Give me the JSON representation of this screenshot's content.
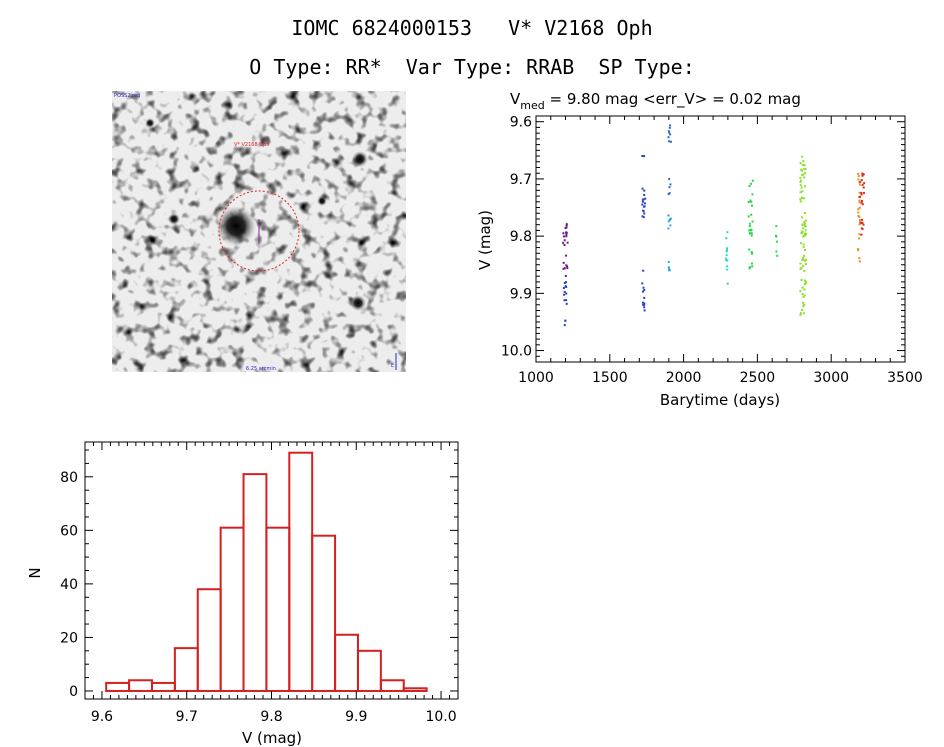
{
  "header": {
    "title_line1": "IOMC 6824000153   V* V2168 Oph",
    "title_line2": "O Type: RR*  Var Type: RRAB  SP Type:"
  },
  "stamp": {
    "top_label": "POSS2 red",
    "center_label": "V* V2168 Oph",
    "bottom_center_label": "6.25 arcmin",
    "bottom_right_label": "E"
  },
  "colors": {
    "histogram": "#d42020",
    "aperture": "#e02020",
    "series": [
      "#6a1a8a",
      "#2a3fc8",
      "#2a68d8",
      "#2aa8d8",
      "#28d8c0",
      "#28d84a",
      "#88e028",
      "#c8e020",
      "#e89018",
      "#d83018"
    ]
  },
  "chart_data": [
    {
      "type": "scatter",
      "title_prefix": "V",
      "title_subscript": "med",
      "title_rest": " = 9.80 mag <err_V> = 0.02 mag",
      "xlabel": "Barytime (days)",
      "ylabel": "V (mag)",
      "xlim": [
        1000,
        3500
      ],
      "ylim": [
        10.02,
        9.59
      ],
      "xticks": [
        "1000",
        "1500",
        "2000",
        "2500",
        "3000",
        "3500"
      ],
      "yticks": [
        "9.6",
        "9.7",
        "9.8",
        "9.9",
        "10.0"
      ],
      "groups": [
        {
          "x": [
            1180,
            1215
          ],
          "y": [
            9.76,
            9.87
          ],
          "n": 22,
          "color_index": 0
        },
        {
          "x": [
            1180,
            1215
          ],
          "y": [
            9.88,
            9.96
          ],
          "n": 14,
          "color_index": 1
        },
        {
          "x": [
            1720,
            1740
          ],
          "y": [
            9.66,
            9.66
          ],
          "n": 2,
          "color_index": 1
        },
        {
          "x": [
            1720,
            1740
          ],
          "y": [
            9.7,
            9.77
          ],
          "n": 16,
          "color_index": 1
        },
        {
          "x": [
            1720,
            1740
          ],
          "y": [
            9.86,
            9.93
          ],
          "n": 12,
          "color_index": 1
        },
        {
          "x": [
            1895,
            1915
          ],
          "y": [
            9.6,
            9.65
          ],
          "n": 8,
          "color_index": 2
        },
        {
          "x": [
            1895,
            1915
          ],
          "y": [
            9.7,
            9.73
          ],
          "n": 5,
          "color_index": 2
        },
        {
          "x": [
            1895,
            1915
          ],
          "y": [
            9.76,
            9.79
          ],
          "n": 8,
          "color_index": 3
        },
        {
          "x": [
            1895,
            1915
          ],
          "y": [
            9.84,
            9.86
          ],
          "n": 5,
          "color_index": 3
        },
        {
          "x": [
            2285,
            2300
          ],
          "y": [
            9.79,
            9.89
          ],
          "n": 12,
          "color_index": 4
        },
        {
          "x": [
            2440,
            2470
          ],
          "y": [
            9.7,
            9.8
          ],
          "n": 20,
          "color_index": 5
        },
        {
          "x": [
            2440,
            2470
          ],
          "y": [
            9.82,
            9.86
          ],
          "n": 8,
          "color_index": 5
        },
        {
          "x": [
            2625,
            2640
          ],
          "y": [
            9.78,
            9.84
          ],
          "n": 6,
          "color_index": 5
        },
        {
          "x": [
            2790,
            2830
          ],
          "y": [
            9.66,
            9.94
          ],
          "n": 80,
          "color_index": 6
        },
        {
          "x": [
            3180,
            3195
          ],
          "y": [
            9.69,
            9.85
          ],
          "n": 22,
          "color_index": 8
        },
        {
          "x": [
            3195,
            3225
          ],
          "y": [
            9.69,
            9.8
          ],
          "n": 25,
          "color_index": 9
        }
      ]
    },
    {
      "type": "bar",
      "style": "histogram",
      "xlabel": "V (mag)",
      "ylabel": "N",
      "xlim": [
        9.58,
        10.02
      ],
      "ylim": [
        -3,
        93
      ],
      "xticks": [
        "9.6",
        "9.7",
        "9.8",
        "9.9",
        "10.0"
      ],
      "yticks": [
        "0",
        "20",
        "40",
        "60",
        "80"
      ],
      "bin_edges": [
        9.605,
        9.632,
        9.659,
        9.686,
        9.713,
        9.74,
        9.767,
        9.794,
        9.821,
        9.848,
        9.875,
        9.902,
        9.929,
        9.956,
        9.983
      ],
      "values": [
        3,
        4,
        3,
        16,
        38,
        61,
        81,
        61,
        89,
        58,
        21,
        15,
        4,
        1
      ]
    }
  ]
}
